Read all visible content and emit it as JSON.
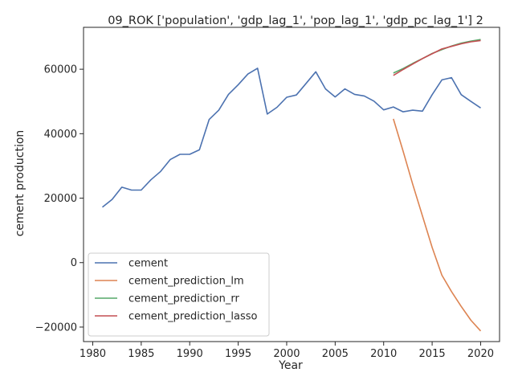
{
  "chart_data": {
    "type": "line",
    "title": "09_ROK ['population', 'gdp_lag_1', 'pop_lag_1', 'gdp_pc_lag_1'] 2",
    "xlabel": "Year",
    "ylabel": "cement production",
    "xlim": [
      1979.05,
      2021.95
    ],
    "ylim": [
      -24500,
      73000
    ],
    "xticks": [
      1980,
      1985,
      1990,
      1995,
      2000,
      2005,
      2010,
      2015,
      2020
    ],
    "xtick_labels": [
      "1980",
      "1985",
      "1990",
      "1995",
      "2000",
      "2005",
      "2010",
      "2015",
      "2020"
    ],
    "yticks": [
      -20000,
      0,
      20000,
      40000,
      60000
    ],
    "ytick_labels": [
      "−20000",
      "0",
      "20000",
      "40000",
      "60000"
    ],
    "grid": false,
    "legend_position": "lower-left",
    "series": [
      {
        "name": "cement",
        "color": "#4c72b0",
        "x": [
          1981,
          1982,
          1983,
          1984,
          1985,
          1986,
          1987,
          1988,
          1989,
          1990,
          1991,
          1992,
          1993,
          1994,
          1995,
          1996,
          1997,
          1998,
          1999,
          2000,
          2001,
          2002,
          2003,
          2004,
          2005,
          2006,
          2007,
          2008,
          2009,
          2010,
          2011,
          2012,
          2013,
          2014,
          2015,
          2016,
          2017,
          2018,
          2019,
          2020
        ],
        "values": [
          17200,
          19600,
          23400,
          22500,
          22500,
          25700,
          28300,
          32000,
          33600,
          33600,
          35000,
          44400,
          47300,
          52200,
          55200,
          58500,
          60300,
          46100,
          48200,
          51300,
          52000,
          55600,
          59200,
          53900,
          51400,
          53900,
          52200,
          51700,
          50100,
          47400,
          48300,
          46800,
          47300,
          47000,
          52100,
          56700,
          57400,
          52100,
          50000,
          48000
        ]
      },
      {
        "name": "cement_prediction_lm",
        "color": "#dd8452",
        "x": [
          2011,
          2012,
          2013,
          2014,
          2015,
          2016,
          2017,
          2018,
          2019,
          2020
        ],
        "values": [
          44600,
          34600,
          24300,
          14500,
          4700,
          -3900,
          -9000,
          -13600,
          -17900,
          -21200
        ]
      },
      {
        "name": "cement_prediction_rr",
        "color": "#55a868",
        "x": [
          2011,
          2012,
          2013,
          2014,
          2015,
          2016,
          2017,
          2018,
          2019,
          2020
        ],
        "values": [
          58800,
          60200,
          61800,
          63300,
          64900,
          66100,
          67200,
          68100,
          68700,
          69200
        ]
      },
      {
        "name": "cement_prediction_lasso",
        "color": "#c44e52",
        "x": [
          2011,
          2012,
          2013,
          2014,
          2015,
          2016,
          2017,
          2018,
          2019,
          2020
        ],
        "values": [
          58100,
          59900,
          61600,
          63300,
          64800,
          66300,
          67100,
          67900,
          68500,
          68900
        ]
      }
    ]
  }
}
